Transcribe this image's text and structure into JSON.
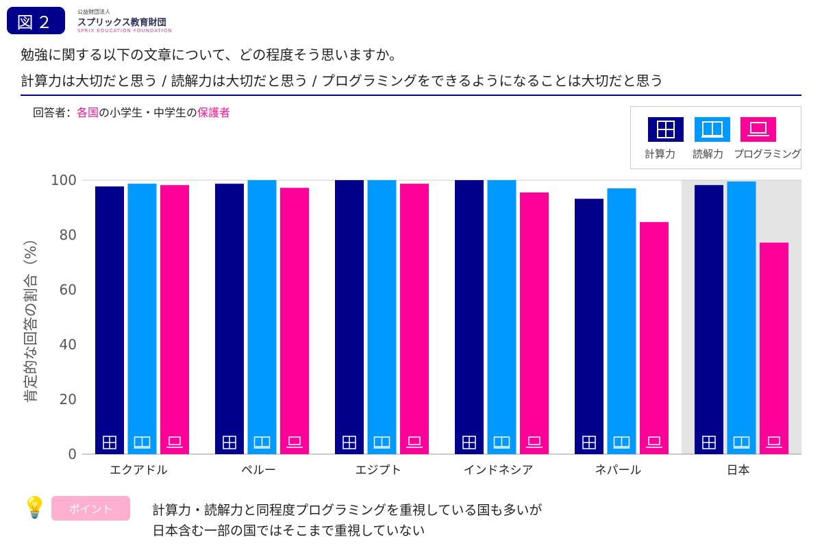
{
  "header": {
    "figure_label": "図２",
    "org_small": "公益財団法人",
    "org_name": "スプリックス教育財団",
    "org_en": "SPRIX EDUCATION FOUNDATION"
  },
  "question": "勉強に関する以下の文章について、どの程度そう思いますか。",
  "items": "計算力は大切だと思う / 読解力は大切だと思う / プログラミングをできるようになることは大切だと思う",
  "respondents": {
    "prefix": "回答者：",
    "p1": "各国",
    "p2": "の小学生・中学生の",
    "p3": "保護者"
  },
  "note": {
    "badge": "ポイント",
    "line1": "計算力・読解力と同程度プログラミングを重視している国も多いが",
    "line2": "日本含む一部の国ではそこまで重視していない"
  },
  "chart_data": {
    "type": "bar",
    "ylabel": "肯定的な回答の割合（%）",
    "ylim": [
      0,
      100
    ],
    "yticks": [
      0,
      20,
      40,
      60,
      80,
      100
    ],
    "categories": [
      "エクアドル",
      "ペルー",
      "エジプト",
      "インドネシア",
      "ネパール",
      "日本"
    ],
    "highlight_category": "日本",
    "legend_placement": "top-right",
    "series": [
      {
        "name": "計算力",
        "color": "#00008b",
        "icon": "calculator-icon",
        "values": [
          97.7,
          98.7,
          100,
          100,
          93.2,
          98.2
        ]
      },
      {
        "name": "読解力",
        "color": "#0099ff",
        "icon": "book-icon",
        "values": [
          98.7,
          100,
          100,
          100,
          97,
          99.5
        ]
      },
      {
        "name": "プログラミング",
        "color": "#ff0099",
        "icon": "laptop-icon",
        "values": [
          98.2,
          97.2,
          98.7,
          95.5,
          84.7,
          77.2
        ]
      }
    ]
  }
}
